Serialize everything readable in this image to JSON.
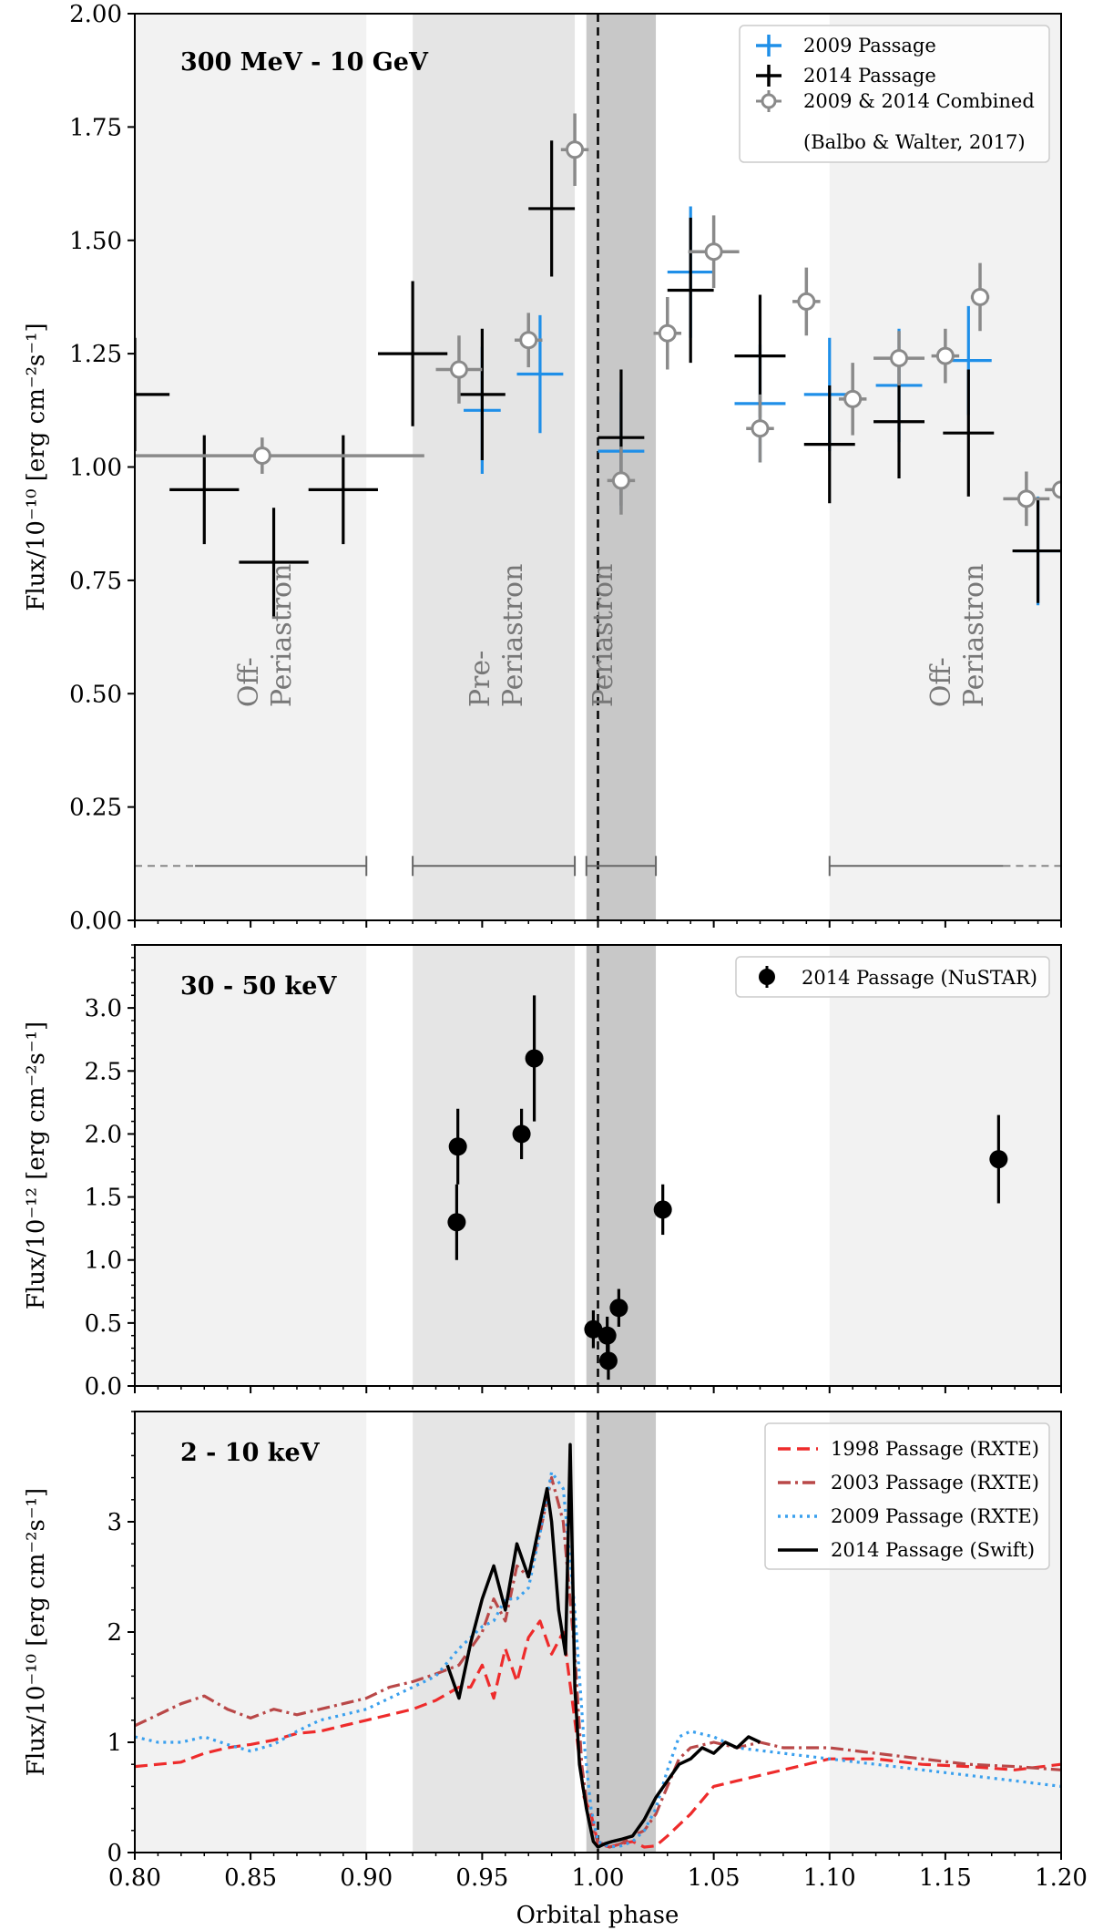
{
  "figure": {
    "xlabel": "Orbital phase",
    "xlim": [
      0.8,
      1.2
    ],
    "xticks": [
      "0.80",
      "0.85",
      "0.90",
      "0.95",
      "1.00",
      "1.05",
      "1.10",
      "1.15",
      "1.20"
    ],
    "periastron_line": 1.0,
    "colors": {
      "blue": "#1f8fe8",
      "black": "#000000",
      "gray": "#8a8a8a",
      "off_shade": "#f2f2f2",
      "pre_shade": "#e5e5e5",
      "peri_shade": "#c8c8c8",
      "red": "#ee2b2b",
      "brown": "#b94848",
      "lightblue": "#3aa0ee"
    }
  },
  "chart_data": [
    {
      "type": "scatter",
      "title": "300 MeV - 10 GeV",
      "ylabel": "Flux/10⁻¹⁰ [erg cm⁻²s⁻¹]",
      "ylim": [
        0,
        2.0
      ],
      "yticks": [
        "0.00",
        "0.25",
        "0.50",
        "0.75",
        "1.00",
        "1.25",
        "1.50",
        "1.75",
        "2.00"
      ],
      "regions": [
        {
          "name": "Off-Periastron",
          "from": 0.8,
          "to": 0.9,
          "shade": "off",
          "label": [
            "Off-",
            "Periastron"
          ],
          "label_x": 0.853
        },
        {
          "name": "Pre-Periastron",
          "from": 0.92,
          "to": 0.99,
          "shade": "pre",
          "label": [
            "Pre-",
            "Periastron"
          ],
          "label_x": 0.953
        },
        {
          "name": "Periastron",
          "from": 0.995,
          "to": 1.025,
          "shade": "peri",
          "label": [
            "Periastron"
          ],
          "label_x": 1.006
        },
        {
          "name": "Off-Periastron",
          "from": 1.1,
          "to": 1.2,
          "shade": "off",
          "label": [
            "Off-",
            "Periastron"
          ],
          "label_x": 1.152
        }
      ],
      "region_brackets": [
        {
          "from": 0.8,
          "to": 0.9,
          "dashed_from": 0.8,
          "dashed_to": 0.826
        },
        {
          "from": 0.92,
          "to": 0.99
        },
        {
          "from": 0.995,
          "to": 1.025
        },
        {
          "from": 1.1,
          "to": 1.2,
          "dashed_from": 1.175,
          "dashed_to": 1.2
        }
      ],
      "bracket_y": 0.12,
      "series": [
        {
          "name": "2009 Passage",
          "color": "blue",
          "style": "errorbar",
          "points": [
            {
              "x": 0.95,
              "xerr": 0.008,
              "y": 1.125,
              "yerr": 0.14
            },
            {
              "x": 0.975,
              "xerr": 0.01,
              "y": 1.205,
              "yerr": 0.13
            },
            {
              "x": 1.01,
              "xerr": 0.01,
              "y": 1.035,
              "yerr": 0.13
            },
            {
              "x": 1.04,
              "xerr": 0.01,
              "y": 1.43,
              "yerr": 0.145
            },
            {
              "x": 1.07,
              "xerr": 0.011,
              "y": 1.14,
              "yerr": 0.13
            },
            {
              "x": 1.1,
              "xerr": 0.011,
              "y": 1.16,
              "yerr": 0.125
            },
            {
              "x": 1.13,
              "xerr": 0.01,
              "y": 1.18,
              "yerr": 0.125
            },
            {
              "x": 1.16,
              "xerr": 0.01,
              "y": 1.235,
              "yerr": 0.12
            },
            {
              "x": 1.19,
              "xerr": 0.01,
              "y": 0.815,
              "yerr": 0.12
            }
          ]
        },
        {
          "name": "2014 Passage",
          "color": "black",
          "style": "errorbar",
          "points": [
            {
              "x": 0.8,
              "xerr": 0.015,
              "y": 1.16,
              "yerr": 0.125
            },
            {
              "x": 0.83,
              "xerr": 0.015,
              "y": 0.95,
              "yerr": 0.12
            },
            {
              "x": 0.86,
              "xerr": 0.015,
              "y": 0.79,
              "yerr": 0.12
            },
            {
              "x": 0.89,
              "xerr": 0.015,
              "y": 0.95,
              "yerr": 0.12
            },
            {
              "x": 0.92,
              "xerr": 0.015,
              "y": 1.25,
              "yerr": 0.16
            },
            {
              "x": 0.95,
              "xerr": 0.01,
              "y": 1.16,
              "yerr": 0.145
            },
            {
              "x": 0.98,
              "xerr": 0.01,
              "y": 1.57,
              "yerr": 0.15
            },
            {
              "x": 1.01,
              "xerr": 0.01,
              "y": 1.065,
              "yerr": 0.15
            },
            {
              "x": 1.04,
              "xerr": 0.01,
              "y": 1.39,
              "yerr": 0.16
            },
            {
              "x": 1.07,
              "xerr": 0.011,
              "y": 1.245,
              "yerr": 0.135
            },
            {
              "x": 1.1,
              "xerr": 0.011,
              "y": 1.05,
              "yerr": 0.13
            },
            {
              "x": 1.13,
              "xerr": 0.011,
              "y": 1.1,
              "yerr": 0.125
            },
            {
              "x": 1.16,
              "xerr": 0.011,
              "y": 1.075,
              "yerr": 0.14
            },
            {
              "x": 1.19,
              "xerr": 0.011,
              "y": 0.815,
              "yerr": 0.115
            }
          ]
        },
        {
          "name": "2009 & 2014 Combined\n(Balbo & Walter, 2017)",
          "color": "gray",
          "style": "circle",
          "points": [
            {
              "x": 0.855,
              "xerr": 0.07,
              "y": 1.025,
              "yerr": 0.04
            },
            {
              "x": 0.94,
              "xerr": 0.01,
              "y": 1.215,
              "yerr": 0.075
            },
            {
              "x": 0.97,
              "xerr": 0.006,
              "y": 1.28,
              "yerr": 0.06
            },
            {
              "x": 0.99,
              "xerr": 0.006,
              "y": 1.7,
              "yerr": 0.08
            },
            {
              "x": 1.01,
              "xerr": 0.006,
              "y": 0.97,
              "yerr": 0.075
            },
            {
              "x": 1.03,
              "xerr": 0.006,
              "y": 1.295,
              "yerr": 0.08
            },
            {
              "x": 1.05,
              "xerr": 0.011,
              "y": 1.475,
              "yerr": 0.08
            },
            {
              "x": 1.07,
              "xerr": 0.006,
              "y": 1.085,
              "yerr": 0.075
            },
            {
              "x": 1.09,
              "xerr": 0.006,
              "y": 1.365,
              "yerr": 0.075
            },
            {
              "x": 1.11,
              "xerr": 0.006,
              "y": 1.15,
              "yerr": 0.08
            },
            {
              "x": 1.13,
              "xerr": 0.011,
              "y": 1.24,
              "yerr": 0.06
            },
            {
              "x": 1.15,
              "xerr": 0.006,
              "y": 1.245,
              "yerr": 0.06
            },
            {
              "x": 1.165,
              "xerr": 0.004,
              "y": 1.375,
              "yerr": 0.075
            },
            {
              "x": 1.185,
              "xerr": 0.01,
              "y": 0.93,
              "yerr": 0.06
            },
            {
              "x": 1.2,
              "xerr": 0.007,
              "y": 0.95,
              "yerr": 0.0
            }
          ]
        }
      ],
      "legend": {
        "position": "top-right",
        "entries": [
          "2009 Passage",
          "2014 Passage",
          "2009 & 2014 Combined",
          "(Balbo & Walter, 2017)"
        ]
      }
    },
    {
      "type": "scatter",
      "title": "30 - 50 keV",
      "ylabel": "Flux/10⁻¹² [erg cm⁻²s⁻¹]",
      "ylim": [
        0,
        3.5
      ],
      "yticks": [
        "0.0",
        "0.5",
        "1.0",
        "1.5",
        "2.0",
        "2.5",
        "3.0"
      ],
      "series": [
        {
          "name": "2014 Passage (NuSTAR)",
          "color": "black",
          "style": "filled",
          "points": [
            {
              "x": 0.939,
              "y": 1.3,
              "yerr": 0.3
            },
            {
              "x": 0.9395,
              "y": 1.9,
              "yerr": 0.3
            },
            {
              "x": 0.967,
              "y": 2.0,
              "yerr": 0.2
            },
            {
              "x": 0.9725,
              "y": 2.6,
              "yerr": 0.5
            },
            {
              "x": 0.998,
              "y": 0.45,
              "yerr": 0.15
            },
            {
              "x": 1.004,
              "y": 0.4,
              "yerr": 0.15
            },
            {
              "x": 1.0045,
              "y": 0.2,
              "yerr": 0.15
            },
            {
              "x": 1.009,
              "y": 0.62,
              "yerr": 0.15
            },
            {
              "x": 1.028,
              "y": 1.4,
              "yerr": 0.2
            },
            {
              "x": 1.173,
              "y": 1.8,
              "yerr": 0.35
            }
          ]
        }
      ],
      "legend": {
        "position": "top-right",
        "entries": [
          "2014 Passage (NuSTAR)"
        ]
      }
    },
    {
      "type": "line",
      "title": "2 - 10 keV",
      "ylabel": "Flux/10⁻¹⁰ [erg cm⁻²s⁻¹]",
      "ylim": [
        0,
        4.0
      ],
      "yticks": [
        "0",
        "1",
        "2",
        "3"
      ],
      "series": [
        {
          "name": "1998 Passage (RXTE)",
          "color": "red",
          "dash": "dashed",
          "x": [
            0.8,
            0.81,
            0.82,
            0.83,
            0.84,
            0.85,
            0.86,
            0.87,
            0.88,
            0.89,
            0.9,
            0.91,
            0.92,
            0.93,
            0.94,
            0.945,
            0.95,
            0.955,
            0.96,
            0.965,
            0.97,
            0.975,
            0.98,
            0.985,
            0.99,
            0.994,
            0.997,
            1.0,
            1.005,
            1.01,
            1.015,
            1.02,
            1.025,
            1.03,
            1.04,
            1.05,
            1.06,
            1.08,
            1.1,
            1.12,
            1.14,
            1.16,
            1.18,
            1.2
          ],
          "y": [
            0.78,
            0.8,
            0.82,
            0.9,
            0.95,
            0.98,
            1.02,
            1.08,
            1.1,
            1.15,
            1.2,
            1.25,
            1.3,
            1.38,
            1.5,
            1.5,
            1.7,
            1.4,
            1.85,
            1.55,
            1.95,
            2.1,
            1.8,
            2.0,
            1.2,
            0.5,
            0.35,
            0.08,
            0.05,
            0.08,
            0.1,
            0.05,
            0.06,
            0.15,
            0.35,
            0.6,
            0.65,
            0.75,
            0.85,
            0.85,
            0.8,
            0.78,
            0.75,
            0.8
          ]
        },
        {
          "name": "2003 Passage (RXTE)",
          "color": "brown",
          "dash": "dashdot",
          "x": [
            0.8,
            0.81,
            0.82,
            0.83,
            0.84,
            0.85,
            0.86,
            0.87,
            0.88,
            0.89,
            0.9,
            0.91,
            0.92,
            0.93,
            0.94,
            0.95,
            0.955,
            0.96,
            0.965,
            0.97,
            0.975,
            0.98,
            0.985,
            0.99,
            0.993,
            0.996,
            1.0,
            1.005,
            1.01,
            1.015,
            1.02,
            1.025,
            1.03,
            1.035,
            1.04,
            1.05,
            1.06,
            1.07,
            1.08,
            1.1,
            1.12,
            1.14,
            1.16,
            1.18,
            1.2
          ],
          "y": [
            1.15,
            1.25,
            1.35,
            1.42,
            1.3,
            1.22,
            1.3,
            1.25,
            1.3,
            1.35,
            1.4,
            1.5,
            1.55,
            1.62,
            1.7,
            2.0,
            2.3,
            2.1,
            2.6,
            2.5,
            2.9,
            3.4,
            3.0,
            1.8,
            0.8,
            0.3,
            0.1,
            0.05,
            0.08,
            0.15,
            0.2,
            0.35,
            0.6,
            0.85,
            0.95,
            1.0,
            0.95,
            1.0,
            0.95,
            0.95,
            0.9,
            0.85,
            0.8,
            0.78,
            0.75
          ]
        },
        {
          "name": "2009 Passage (RXTE)",
          "color": "lightblue",
          "dash": "dotted",
          "x": [
            0.8,
            0.81,
            0.82,
            0.83,
            0.84,
            0.85,
            0.86,
            0.87,
            0.88,
            0.89,
            0.9,
            0.91,
            0.92,
            0.93,
            0.94,
            0.95,
            0.955,
            0.96,
            0.965,
            0.97,
            0.975,
            0.98,
            0.985,
            0.99,
            0.994,
            0.997,
            1.0,
            1.005,
            1.01,
            1.015,
            1.02,
            1.025,
            1.03,
            1.035,
            1.04,
            1.05,
            1.06,
            1.08,
            1.1,
            1.12,
            1.14,
            1.16,
            1.18,
            1.2
          ],
          "y": [
            1.05,
            1.0,
            1.0,
            1.05,
            0.98,
            0.92,
            0.98,
            1.1,
            1.2,
            1.25,
            1.3,
            1.4,
            1.5,
            1.6,
            1.85,
            2.05,
            2.1,
            2.3,
            2.3,
            2.4,
            2.9,
            3.45,
            3.3,
            2.2,
            1.0,
            0.4,
            0.1,
            0.05,
            0.06,
            0.1,
            0.2,
            0.4,
            0.75,
            1.05,
            1.1,
            1.05,
            0.95,
            0.9,
            0.85,
            0.8,
            0.75,
            0.7,
            0.65,
            0.6
          ]
        },
        {
          "name": "2014 Passage (Swift)",
          "color": "black",
          "dash": "solid",
          "x": [
            0.935,
            0.94,
            0.945,
            0.95,
            0.955,
            0.96,
            0.965,
            0.97,
            0.975,
            0.978,
            0.98,
            0.983,
            0.986,
            0.988,
            0.99,
            0.992,
            0.995,
            0.998,
            1.0,
            1.003,
            1.006,
            1.01,
            1.015,
            1.02,
            1.025,
            1.03,
            1.035,
            1.04,
            1.045,
            1.05,
            1.055,
            1.06,
            1.065,
            1.07
          ],
          "y": [
            1.7,
            1.4,
            1.9,
            2.3,
            2.6,
            2.2,
            2.8,
            2.5,
            3.0,
            3.3,
            3.0,
            2.2,
            1.8,
            3.7,
            1.5,
            0.8,
            0.4,
            0.1,
            0.05,
            0.08,
            0.1,
            0.12,
            0.15,
            0.3,
            0.5,
            0.65,
            0.8,
            0.85,
            0.95,
            0.9,
            1.0,
            0.95,
            1.05,
            1.0
          ]
        }
      ],
      "legend": {
        "position": "top-right",
        "entries": [
          "1998 Passage (RXTE)",
          "2003 Passage (RXTE)",
          "2009 Passage (RXTE)",
          "2014 Passage (Swift)"
        ]
      }
    }
  ]
}
